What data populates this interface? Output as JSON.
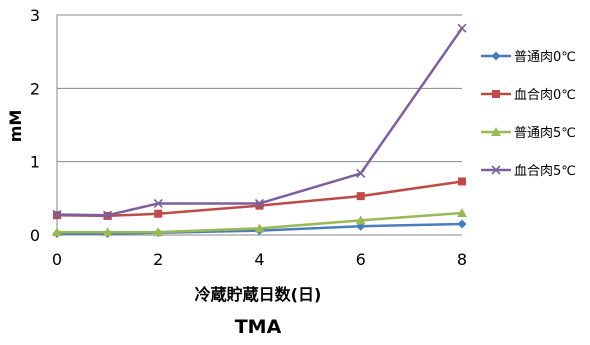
{
  "chart_data": {
    "type": "line",
    "title": "TMA",
    "xlabel": "冷蔵貯蔵日数(日)",
    "ylabel": "mM",
    "x": [
      0,
      1,
      2,
      4,
      6,
      8
    ],
    "xticks": [
      0,
      2,
      4,
      6,
      8
    ],
    "xlim": [
      0,
      8
    ],
    "ylim": [
      0,
      3
    ],
    "yticks": [
      0,
      1,
      2,
      3
    ],
    "grid": "horizontal",
    "legend": "right",
    "series": [
      {
        "name": "普通肉0℃",
        "values": [
          0.02,
          0.02,
          0.03,
          0.06,
          0.12,
          0.15
        ],
        "color": "#4a7ebb",
        "marker": "diamond"
      },
      {
        "name": "血合肉0℃",
        "values": [
          0.27,
          0.26,
          0.29,
          0.4,
          0.53,
          0.73
        ],
        "color": "#be4b48",
        "marker": "square"
      },
      {
        "name": "普通肉5℃",
        "values": [
          0.04,
          0.04,
          0.04,
          0.09,
          0.2,
          0.3
        ],
        "color": "#98b954",
        "marker": "triangle"
      },
      {
        "name": "血合肉5℃",
        "values": [
          0.28,
          0.27,
          0.43,
          0.43,
          0.84,
          2.82
        ],
        "color": "#7d5fa0",
        "marker": "x"
      }
    ]
  }
}
